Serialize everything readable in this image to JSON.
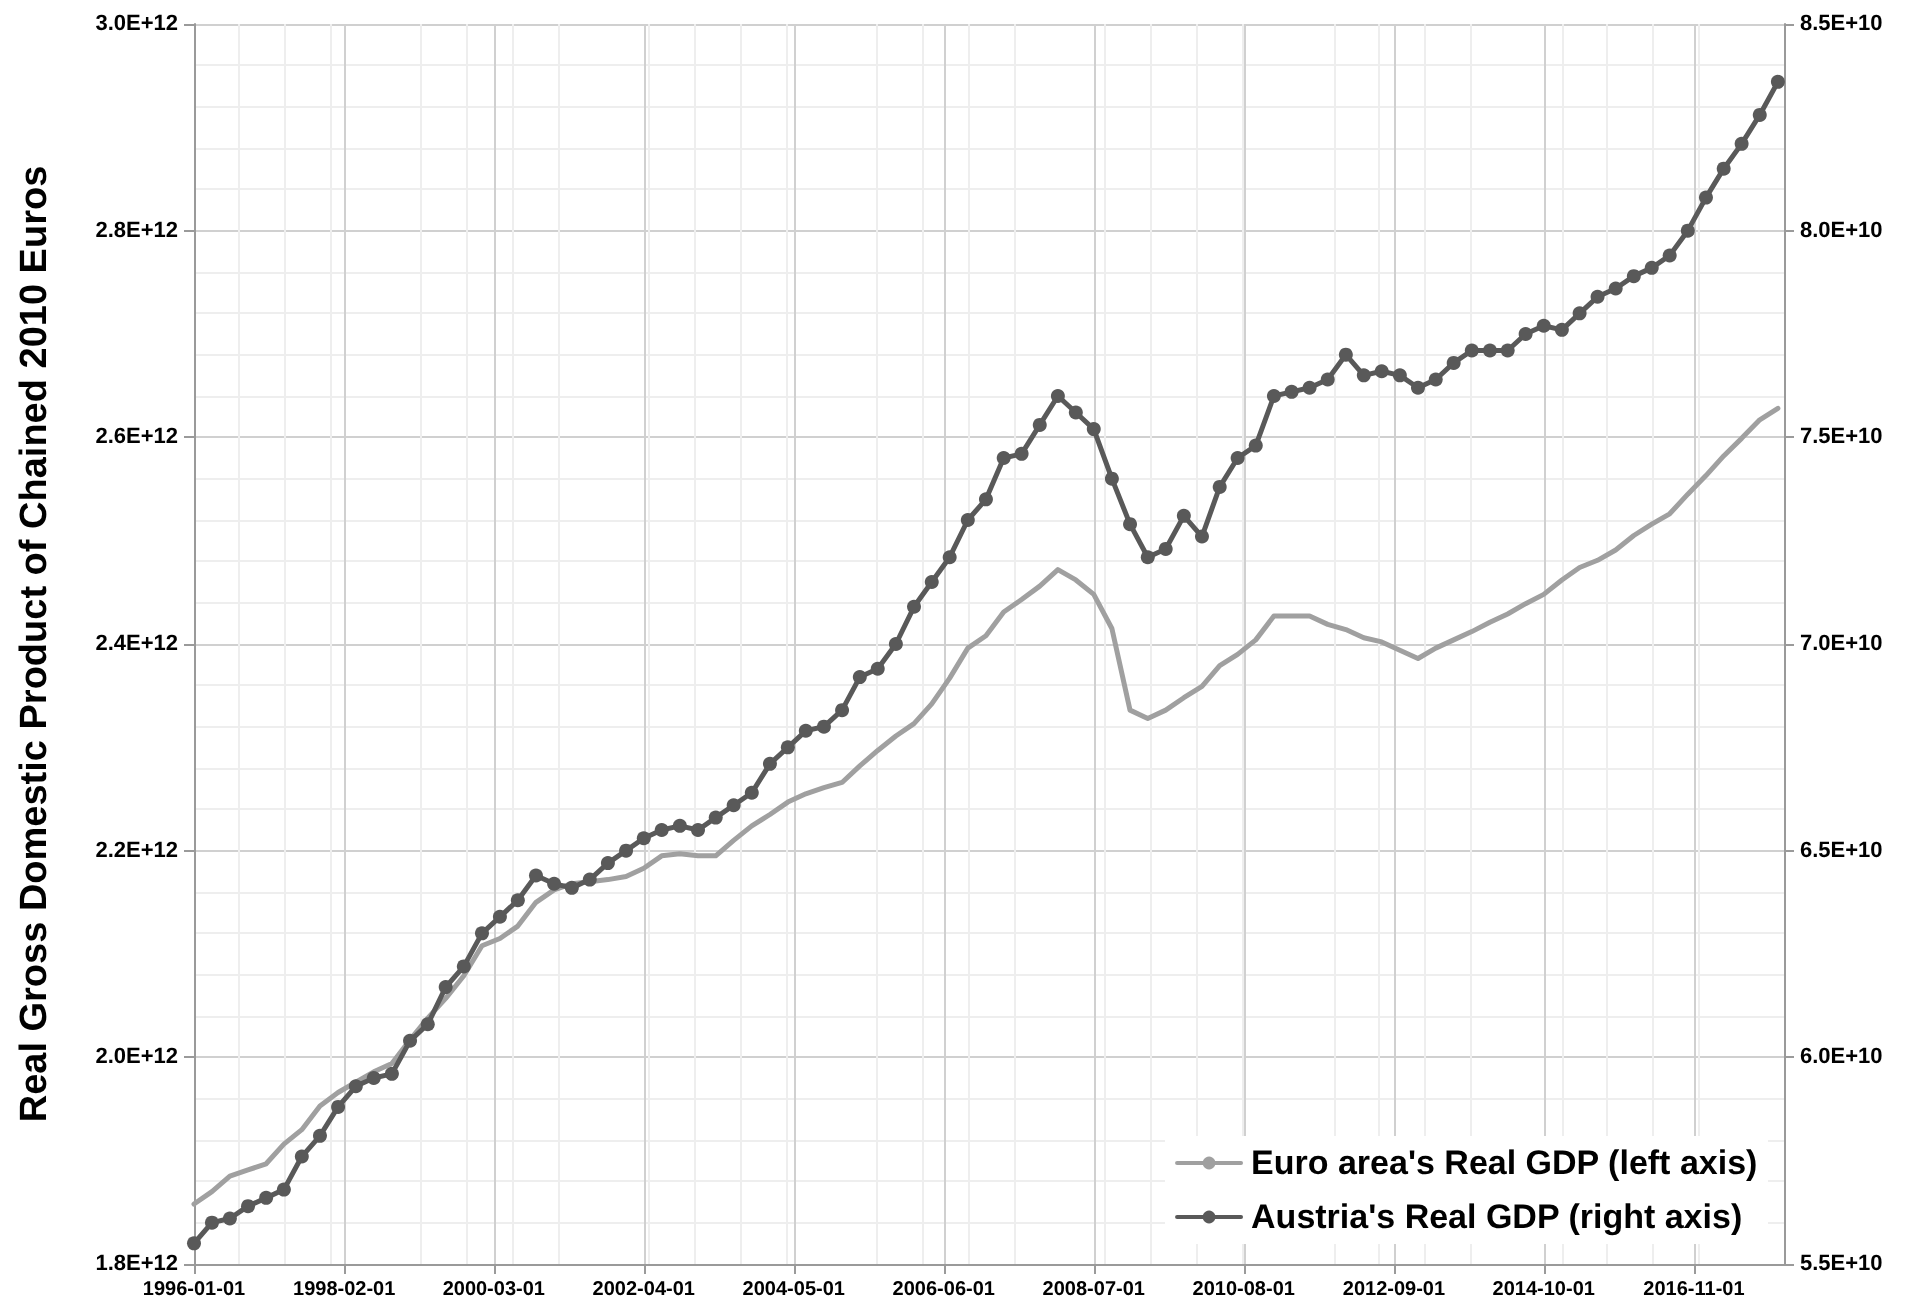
{
  "chart_data": {
    "type": "line",
    "ylabel": "Real Gross Domestic Product of Chained 2010 Euros",
    "x": [
      "1996-01-01",
      "1996-04-01",
      "1996-07-01",
      "1996-10-01",
      "1997-01-01",
      "1997-04-01",
      "1997-07-01",
      "1997-10-01",
      "1998-01-01",
      "1998-04-01",
      "1998-07-01",
      "1998-10-01",
      "1999-01-01",
      "1999-04-01",
      "1999-07-01",
      "1999-10-01",
      "2000-01-01",
      "2000-04-01",
      "2000-07-01",
      "2000-10-01",
      "2001-01-01",
      "2001-04-01",
      "2001-07-01",
      "2001-10-01",
      "2002-01-01",
      "2002-04-01",
      "2002-07-01",
      "2002-10-01",
      "2003-01-01",
      "2003-04-01",
      "2003-07-01",
      "2003-10-01",
      "2004-01-01",
      "2004-04-01",
      "2004-07-01",
      "2004-10-01",
      "2005-01-01",
      "2005-04-01",
      "2005-07-01",
      "2005-10-01",
      "2006-01-01",
      "2006-04-01",
      "2006-07-01",
      "2006-10-01",
      "2007-01-01",
      "2007-04-01",
      "2007-07-01",
      "2007-10-01",
      "2008-01-01",
      "2008-04-01",
      "2008-07-01",
      "2008-10-01",
      "2009-01-01",
      "2009-04-01",
      "2009-07-01",
      "2009-10-01",
      "2010-01-01",
      "2010-04-01",
      "2010-07-01",
      "2010-10-01",
      "2011-01-01",
      "2011-04-01",
      "2011-07-01",
      "2011-10-01",
      "2012-01-01",
      "2012-04-01",
      "2012-07-01",
      "2012-10-01",
      "2013-01-01",
      "2013-04-01",
      "2013-07-01",
      "2013-10-01",
      "2014-01-01",
      "2014-04-01",
      "2014-07-01",
      "2014-10-01",
      "2015-01-01",
      "2015-04-01",
      "2015-07-01",
      "2015-10-01",
      "2016-01-01",
      "2016-04-01",
      "2016-07-01",
      "2016-10-01",
      "2017-01-01",
      "2017-04-01",
      "2017-07-01",
      "2017-10-01",
      "2018-01-01"
    ],
    "series": [
      {
        "name": "Euro area's Real GDP (left axis)",
        "color": "#a0a0a0",
        "marker": "none",
        "values": [
          1858000000000.0,
          1870000000000.0,
          1885000000000.0,
          1891000000000.0,
          1897000000000.0,
          1916000000000.0,
          1930000000000.0,
          1953000000000.0,
          1966000000000.0,
          1976000000000.0,
          1986000000000.0,
          1994000000000.0,
          2017000000000.0,
          2038000000000.0,
          2057000000000.0,
          2079000000000.0,
          2108000000000.0,
          2115000000000.0,
          2127000000000.0,
          2150000000000.0,
          2162000000000.0,
          2168000000000.0,
          2170000000000.0,
          2172000000000.0,
          2175000000000.0,
          2183000000000.0,
          2195000000000.0,
          2197000000000.0,
          2195000000000.0,
          2195000000000.0,
          2210000000000.0,
          2224000000000.0,
          2235000000000.0,
          2247000000000.0,
          2255000000000.0,
          2261000000000.0,
          2266000000000.0,
          2282000000000.0,
          2297000000000.0,
          2311000000000.0,
          2323000000000.0,
          2342000000000.0,
          2367000000000.0,
          2396000000000.0,
          2408000000000.0,
          2431000000000.0,
          2443000000000.0,
          2456000000000.0,
          2472000000000.0,
          2462000000000.0,
          2448000000000.0,
          2415000000000.0,
          2336000000000.0,
          2328000000000.0,
          2336000000000.0,
          2348000000000.0,
          2359000000000.0,
          2379000000000.0,
          2390000000000.0,
          2404000000000.0,
          2427000000000.0,
          2427000000000.0,
          2427000000000.0,
          2419000000000.0,
          2414000000000.0,
          2406000000000.0,
          2402000000000.0,
          2394000000000.0,
          2386000000000.0,
          2396000000000.0,
          2404000000000.0,
          2412000000000.0,
          2421000000000.0,
          2429000000000.0,
          2439000000000.0,
          2448000000000.0,
          2462000000000.0,
          2474000000000.0,
          2481000000000.0,
          2491000000000.0,
          2505000000000.0,
          2516000000000.0,
          2526000000000.0,
          2545000000000.0,
          2563000000000.0,
          2582000000000.0,
          2599000000000.0,
          2617000000000.0,
          2628000000000.0
        ]
      },
      {
        "name": "Austria's Real GDP (right axis)",
        "color": "#595959",
        "marker": "circle",
        "axis": "y2",
        "values": [
          55500000000.0,
          56000000000.0,
          56100000000.0,
          56400000000.0,
          56600000000.0,
          56800000000.0,
          57600000000.0,
          58100000000.0,
          58800000000.0,
          59300000000.0,
          59500000000.0,
          59600000000.0,
          60400000000.0,
          60800000000.0,
          61700000000.0,
          62200000000.0,
          63000000000.0,
          63400000000.0,
          63800000000.0,
          64400000000.0,
          64200000000.0,
          64100000000.0,
          64300000000.0,
          64700000000.0,
          65000000000.0,
          65300000000.0,
          65500000000.0,
          65600000000.0,
          65500000000.0,
          65800000000.0,
          66100000000.0,
          66400000000.0,
          67100000000.0,
          67500000000.0,
          67900000000.0,
          68000000000.0,
          68400000000.0,
          69200000000.0,
          69400000000.0,
          70000000000.0,
          70900000000.0,
          71500000000.0,
          72100000000.0,
          73000000000.0,
          73500000000.0,
          74500000000.0,
          74600000000.0,
          75300000000.0,
          76000000000.0,
          75600000000.0,
          75200000000.0,
          74000000000.0,
          72900000000.0,
          72100000000.0,
          72300000000.0,
          73100000000.0,
          72600000000.0,
          73800000000.0,
          74500000000.0,
          74800000000.0,
          76000000000.0,
          76100000000.0,
          76200000000.0,
          76400000000.0,
          77000000000.0,
          76500000000.0,
          76600000000.0,
          76500000000.0,
          76200000000.0,
          76400000000.0,
          76800000000.0,
          77100000000.0,
          77100000000.0,
          77100000000.0,
          77500000000.0,
          77700000000.0,
          77600000000.0,
          78000000000.0,
          78400000000.0,
          78600000000.0,
          78900000000.0,
          79100000000.0,
          79400000000.0,
          80000000000.0,
          80800000000.0,
          81500000000.0,
          82100000000.0,
          82800000000.0,
          83600000000.0
        ]
      }
    ],
    "xlim": [
      "1996-01-01",
      "2018-02-01"
    ],
    "xticks": [
      "1996-01-01",
      "1998-02-01",
      "2000-03-01",
      "2002-04-01",
      "2004-05-01",
      "2006-06-01",
      "2008-07-01",
      "2010-08-01",
      "2012-09-01",
      "2014-10-01",
      "2016-11-01"
    ],
    "ylim": [
      1800000000000.0,
      3000000000000.0
    ],
    "yticks": [
      {
        "value": 1800000000000.0,
        "label": "1.8E+12"
      },
      {
        "value": 2000000000000.0,
        "label": "2.0E+12"
      },
      {
        "value": 2200000000000.0,
        "label": "2.2E+12"
      },
      {
        "value": 2400000000000.0,
        "label": "2.4E+12"
      },
      {
        "value": 2600000000000.0,
        "label": "2.6E+12"
      },
      {
        "value": 2800000000000.0,
        "label": "2.8E+12"
      },
      {
        "value": 3000000000000.0,
        "label": "3.0E+12"
      }
    ],
    "y2lim": [
      55000000000.0,
      85000000000.0
    ],
    "y2ticks": [
      {
        "value": 55000000000.0,
        "label": "5.5E+10"
      },
      {
        "value": 60000000000.0,
        "label": "6.0E+10"
      },
      {
        "value": 65000000000.0,
        "label": "6.5E+10"
      },
      {
        "value": 70000000000.0,
        "label": "7.0E+10"
      },
      {
        "value": 75000000000.0,
        "label": "7.5E+10"
      },
      {
        "value": 80000000000.0,
        "label": "8.0E+10"
      },
      {
        "value": 85000000000.0,
        "label": "8.5E+10"
      }
    ],
    "grid": true,
    "legend": "bottom right",
    "line_style": "solid"
  }
}
